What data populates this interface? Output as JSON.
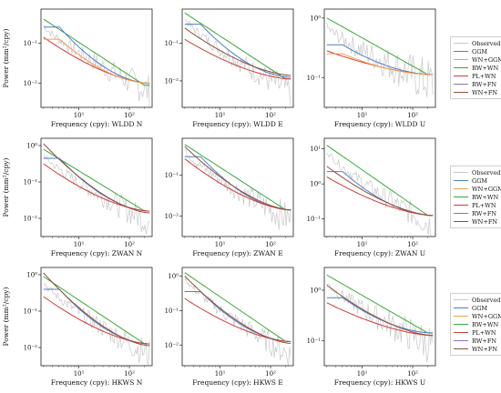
{
  "chart_data": {
    "type": "line",
    "x_scale": "log",
    "y_scale": "log",
    "colors": {
      "Observed": "#c8c8c8",
      "GGM": "#4f7fc0",
      "WN+GGM": "#f0a050",
      "RW+WN": "#3aa83a",
      "PL+WN": "#d03a3a",
      "RW+FN": "#9070b8",
      "WN+FN": "#8c5040"
    },
    "legend_order": [
      "Observed",
      "GGM",
      "WN+GGM",
      "RW+WN",
      "PL+WN",
      "RW+FN",
      "WN+FN"
    ],
    "ylabel": "Power (mm²/cpy)",
    "panels": [
      {
        "xlabel": "Frequency (cpy): WLDD N",
        "y_ticks": [
          "10⁻¹",
          "10⁻²"
        ],
        "y_tick_logs": [
          -1,
          -2
        ],
        "ylim_log": [
          -2.6,
          -0.15
        ],
        "series": [
          {
            "name": "RW+WN",
            "start": -0.4,
            "end": -2.05
          },
          {
            "name": "GGM",
            "start": -0.6,
            "end": -2.0
          },
          {
            "name": "PL+WN",
            "start": -0.85,
            "end": -2.0
          },
          {
            "name": "WN+GGM",
            "start": -0.9,
            "end": -2.0
          }
        ],
        "obs_end": -2.2
      },
      {
        "xlabel": "Frequency (cpy): WLDD E",
        "y_ticks": [
          "10⁻¹",
          "10⁻²"
        ],
        "y_tick_logs": [
          -1,
          -2
        ],
        "ylim_log": [
          -2.7,
          -0.1
        ],
        "series": [
          {
            "name": "RW+WN",
            "start": -0.2,
            "end": -1.95
          },
          {
            "name": "GGM",
            "start": -0.5,
            "end": -1.9
          },
          {
            "name": "PL+WN",
            "start": -0.9,
            "end": -1.95
          },
          {
            "name": "WN+FN",
            "start": -0.6,
            "end": -1.85
          }
        ],
        "obs_end": -2.3
      },
      {
        "xlabel": "Frequency (cpy): WLDD U",
        "y_ticks": [
          "10⁰",
          "10⁻¹"
        ],
        "y_tick_logs": [
          0,
          -1
        ],
        "ylim_log": [
          -1.5,
          0.15
        ],
        "series": [
          {
            "name": "RW+WN",
            "start": 0.0,
            "end": -0.95
          },
          {
            "name": "GGM",
            "start": -0.45,
            "end": -0.95
          },
          {
            "name": "PL+WN",
            "start": -0.55,
            "end": -0.95
          },
          {
            "name": "WN+GGM",
            "start": -0.6,
            "end": -0.95
          }
        ],
        "obs_end": -1.1
      },
      {
        "xlabel": "Frequency (cpy): ZWAN N",
        "y_ticks": [
          "10⁰",
          "10⁻¹",
          "10⁻²"
        ],
        "y_tick_logs": [
          0,
          -1,
          -2
        ],
        "ylim_log": [
          -2.5,
          0.2
        ],
        "series": [
          {
            "name": "RW+WN",
            "start": -0.1,
            "end": -1.8
          },
          {
            "name": "GGM",
            "start": -0.35,
            "end": -1.8
          },
          {
            "name": "PL+WN",
            "start": -0.5,
            "end": -1.8
          },
          {
            "name": "WN+FN",
            "start": 0.05,
            "end": -1.85
          }
        ],
        "obs_end": -2.1
      },
      {
        "xlabel": "Frequency (cpy): ZWAN E",
        "y_ticks": [
          "10⁻¹",
          "10⁻²"
        ],
        "y_tick_logs": [
          -1,
          -2
        ],
        "ylim_log": [
          -2.5,
          -0.1
        ],
        "series": [
          {
            "name": "RW+WN",
            "start": -0.25,
            "end": -1.85
          },
          {
            "name": "GGM",
            "start": -0.55,
            "end": -1.85
          },
          {
            "name": "PL+WN",
            "start": -0.6,
            "end": -1.85
          },
          {
            "name": "WN+FN",
            "start": -0.3,
            "end": -1.85
          }
        ],
        "obs_end": -2.1
      },
      {
        "xlabel": "Frequency (cpy): ZWAN U",
        "y_ticks": [
          "10¹",
          "10⁰",
          "10⁻¹"
        ],
        "y_tick_logs": [
          1,
          0,
          -1
        ],
        "ylim_log": [
          -1.5,
          1.3
        ],
        "series": [
          {
            "name": "RW+WN",
            "start": 1.1,
            "end": -0.9
          },
          {
            "name": "GGM",
            "start": 0.35,
            "end": -0.9
          },
          {
            "name": "PL+WN",
            "start": 0.2,
            "end": -0.9
          },
          {
            "name": "WN+FN",
            "start": 0.5,
            "end": -0.9
          }
        ],
        "obs_end": -1.2
      },
      {
        "xlabel": "Frequency (cpy): HKWS N",
        "y_ticks": [
          "10⁰",
          "10⁻¹",
          "10⁻²"
        ],
        "y_tick_logs": [
          0,
          -1,
          -2
        ],
        "ylim_log": [
          -2.5,
          0.2
        ],
        "series": [
          {
            "name": "RW+WN",
            "start": -0.05,
            "end": -1.9
          },
          {
            "name": "GGM",
            "start": -0.4,
            "end": -1.9
          },
          {
            "name": "PL+WN",
            "start": -0.6,
            "end": -1.9
          },
          {
            "name": "WN+FN",
            "start": 0.05,
            "end": -1.95
          }
        ],
        "obs_end": -2.2
      },
      {
        "xlabel": "Frequency (cpy): HKWS E",
        "y_ticks": [
          "10⁰",
          "10⁻¹",
          "10⁻²"
        ],
        "y_tick_logs": [
          0,
          -1,
          -2
        ],
        "ylim_log": [
          -2.6,
          0.25
        ],
        "series": [
          {
            "name": "RW+WN",
            "start": 0.1,
            "end": -1.9
          },
          {
            "name": "GGM",
            "start": -0.45,
            "end": -1.9
          },
          {
            "name": "PL+WN",
            "start": -0.65,
            "end": -1.9
          },
          {
            "name": "WN+FN",
            "start": 0.0,
            "end": -1.95
          }
        ],
        "obs_end": -2.3
      },
      {
        "xlabel": "Frequency (cpy): HKWS U",
        "y_ticks": [
          "10⁰",
          "10⁻¹"
        ],
        "y_tick_logs": [
          0,
          -1
        ],
        "ylim_log": [
          -1.5,
          0.45
        ],
        "series": [
          {
            "name": "RW+WN",
            "start": 0.3,
            "end": -0.85
          },
          {
            "name": "GGM",
            "start": -0.15,
            "end": -0.85
          },
          {
            "name": "PL+WN",
            "start": -0.25,
            "end": -0.9
          },
          {
            "name": "WN+FN",
            "start": 0.1,
            "end": -0.9
          }
        ],
        "obs_end": -1.1
      }
    ]
  }
}
